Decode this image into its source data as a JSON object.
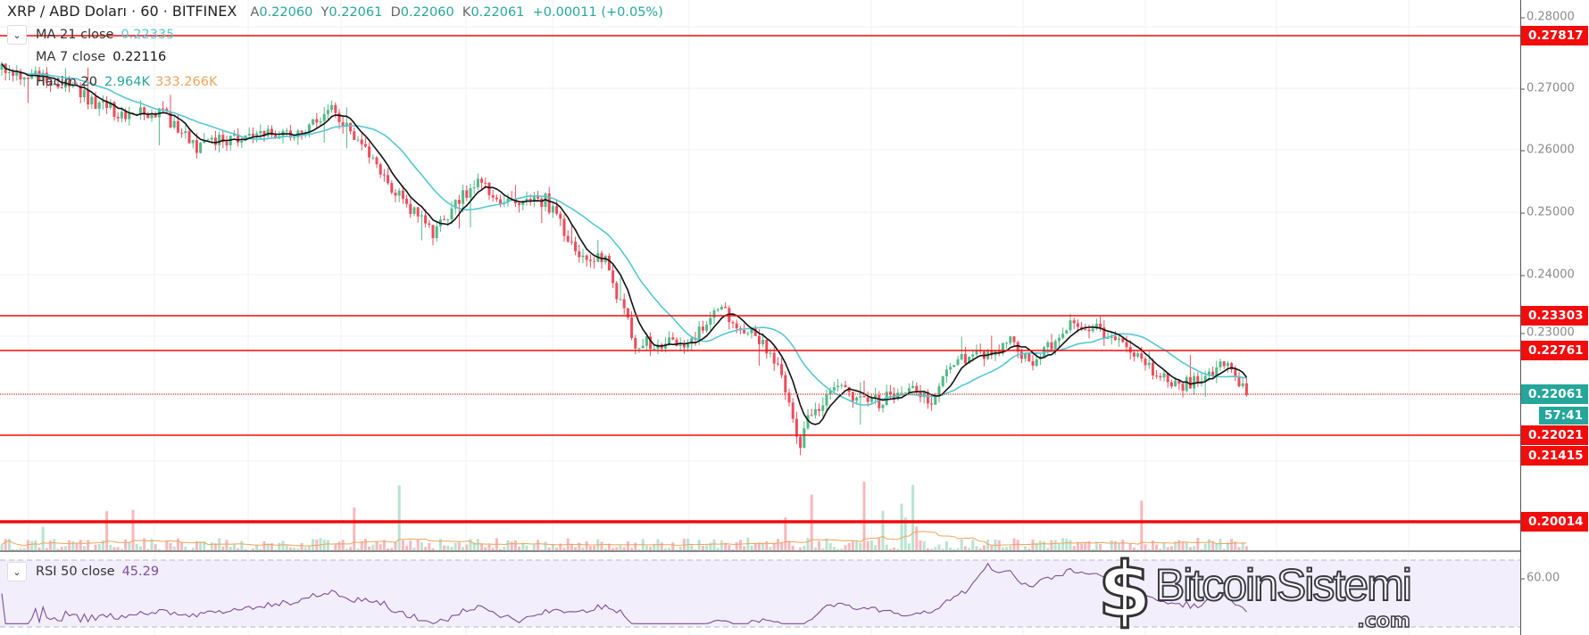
{
  "header": {
    "symbol": "XRP / ABD Doları · 60 · BITFINEX",
    "o_label": "A",
    "o": "0.22060",
    "h_label": "Y",
    "h": "0.22061",
    "l_label": "D",
    "l": "0.22060",
    "c_label": "K",
    "c": "0.22061",
    "change": "+0.00011 (+0.05%)"
  },
  "legend": {
    "ma21": {
      "label": "MA 21 close",
      "value": "0.22335"
    },
    "ma7": {
      "label": "MA 7 close",
      "value": "0.22116"
    },
    "volume": {
      "label": "Hacim 20",
      "value1": "2.964K",
      "value2": "333.266K"
    },
    "rsi": {
      "label": "RSI 50 close",
      "value": "45.29"
    }
  },
  "axis": {
    "ticks": [
      "0.28000",
      "0.27000",
      "0.26000",
      "0.25000",
      "0.24000",
      "0.23000"
    ],
    "levels": [
      "0.27817",
      "0.23303",
      "0.22761",
      "0.22021",
      "0.21415",
      "0.20014"
    ],
    "current_price": "0.22061",
    "countdown": "57:41",
    "rsi_tick": "60.00"
  },
  "colors": {
    "up": "#53b987",
    "down": "#eb4d5c",
    "ma7": "#111111",
    "ma21": "#56c7d3",
    "level": "#f20c0c",
    "rsi": "#7b4f9e",
    "vol_ma": "#f0a35a"
  },
  "watermark": {
    "name": "BitcoinSistemi",
    "domain": ".com"
  },
  "chart_data": {
    "type": "candlestick",
    "timeframe": "60",
    "bars": 333,
    "ylim": [
      0.2,
      0.2815
    ],
    "price_path": [
      [
        0,
        0.273
      ],
      [
        14,
        0.2715
      ],
      [
        27,
        0.2675
      ],
      [
        35,
        0.2655
      ],
      [
        43,
        0.2665
      ],
      [
        53,
        0.2605
      ],
      [
        65,
        0.2625
      ],
      [
        81,
        0.263
      ],
      [
        89,
        0.2665
      ],
      [
        100,
        0.258
      ],
      [
        108,
        0.252
      ],
      [
        116,
        0.2465
      ],
      [
        127,
        0.255
      ],
      [
        135,
        0.252
      ],
      [
        146,
        0.252
      ],
      [
        154,
        0.244
      ],
      [
        162,
        0.242
      ],
      [
        170,
        0.229
      ],
      [
        184,
        0.229
      ],
      [
        192,
        0.2345
      ],
      [
        200,
        0.231
      ],
      [
        208,
        0.226
      ],
      [
        214,
        0.2125
      ],
      [
        216,
        0.217
      ],
      [
        224,
        0.2215
      ],
      [
        235,
        0.2195
      ],
      [
        243,
        0.2225
      ],
      [
        249,
        0.2195
      ],
      [
        254,
        0.226
      ],
      [
        262,
        0.227
      ],
      [
        270,
        0.229
      ],
      [
        276,
        0.226
      ],
      [
        286,
        0.232
      ],
      [
        297,
        0.2305
      ],
      [
        305,
        0.226
      ],
      [
        314,
        0.222
      ],
      [
        322,
        0.2235
      ],
      [
        327,
        0.226
      ],
      [
        333,
        0.2206
      ]
    ]
  }
}
